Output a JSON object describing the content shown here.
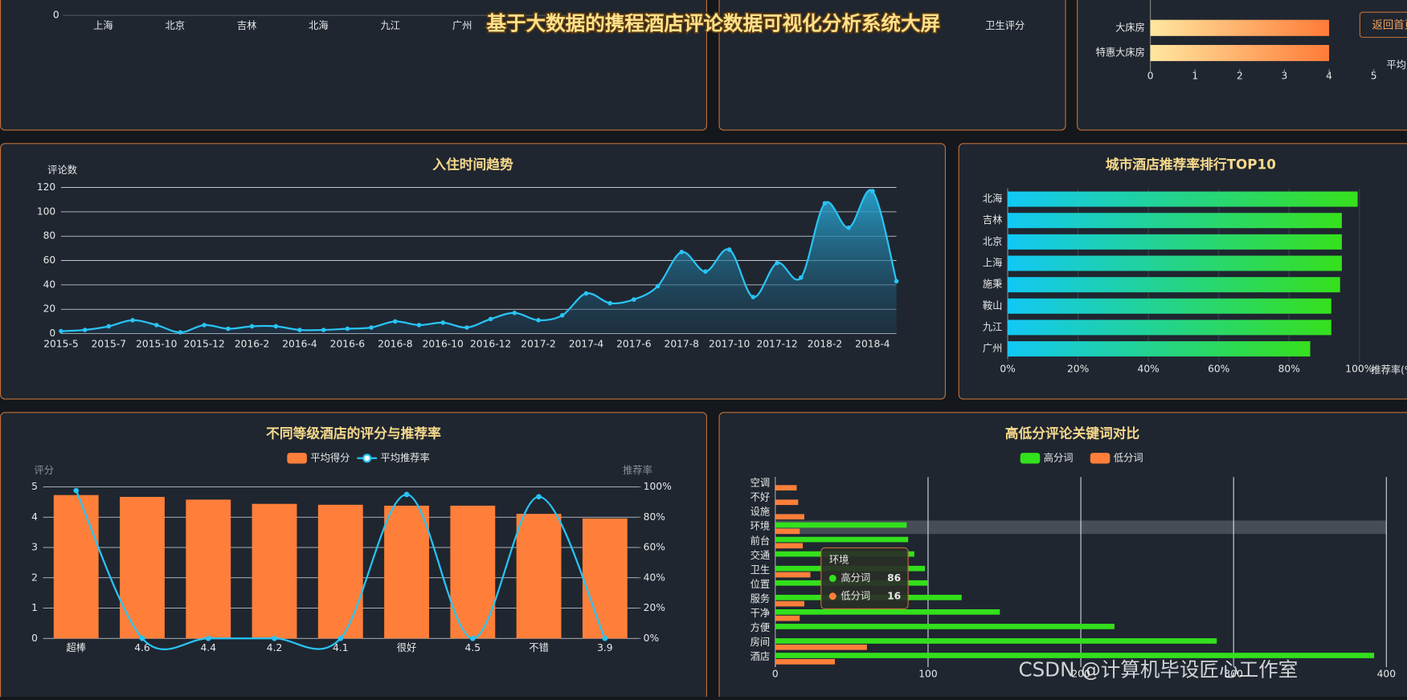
{
  "header": {
    "title": "基于大数据的携程酒店评论数据可视化分析系统大屏",
    "button": "返回首页"
  },
  "watermark": "CSDN @计算机毕设匠心工作室",
  "chart_data": [
    {
      "type": "bar",
      "categories": [
        "上海",
        "北京",
        "吉林",
        "北海",
        "九江",
        "广州"
      ],
      "yticks": [
        0
      ]
    },
    {
      "type": "bar",
      "categories": [
        "卫生评分"
      ]
    },
    {
      "type": "hbar",
      "categories": [
        "大床房",
        "特惠大床房"
      ],
      "values": [
        4,
        4
      ],
      "xlim": [
        0,
        5
      ],
      "xticks": [
        0,
        1,
        2,
        3,
        4,
        5
      ],
      "x_label": "平均分"
    },
    {
      "type": "line",
      "title": "入住时间趋势",
      "y_label": "评论数",
      "categories": [
        "2015-5",
        null,
        "2015-7",
        null,
        "2015-10",
        null,
        "2015-12",
        null,
        "2016-2",
        null,
        "2016-4",
        null,
        "2016-6",
        null,
        "2016-8",
        null,
        "2016-10",
        null,
        "2016-12",
        null,
        "2017-2",
        null,
        "2017-4",
        null,
        "2017-6",
        null,
        "2017-8",
        null,
        "2017-10",
        null,
        "2017-12",
        null,
        "2018-2",
        null,
        "2018-4",
        null
      ],
      "values": [
        2,
        3,
        6,
        11,
        7,
        1,
        7,
        4,
        6,
        6,
        3,
        3,
        4,
        5,
        10,
        7,
        9,
        5,
        12,
        17,
        11,
        15,
        33,
        25,
        28,
        39,
        67,
        51,
        69,
        30,
        58,
        46,
        107,
        87,
        117,
        43
      ],
      "color": "#29c4f5",
      "ylim": [
        0,
        120
      ],
      "yticks": [
        0,
        20,
        40,
        60,
        80,
        100,
        120
      ],
      "grid": true
    },
    {
      "type": "hbar",
      "title": "城市酒店推荐率排行TOP10",
      "x_label": "推荐率(%)",
      "categories": [
        "北海",
        "吉林",
        "北京",
        "上海",
        "施秉",
        "鞍山",
        "九江",
        "广州"
      ],
      "values": [
        99.5,
        95,
        95,
        95,
        94.5,
        92,
        92,
        86
      ],
      "xlim": [
        0,
        100
      ],
      "xticks": [
        {
          "value": 0,
          "label": "0%"
        },
        {
          "value": 20,
          "label": "20%"
        },
        {
          "value": 40,
          "label": "40%"
        },
        {
          "value": 60,
          "label": "60%"
        },
        {
          "value": 80,
          "label": "80%"
        },
        {
          "value": 100,
          "label": "100%"
        }
      ],
      "grid": true
    },
    {
      "type": "combo",
      "title": "不同等级酒店的评分与推荐率",
      "y_label": "评分",
      "y2_label": "推荐率",
      "categories": [
        "超棒",
        "4.6",
        "4.4",
        "4.2",
        "4.1",
        "很好",
        "4.5",
        "不错",
        "3.9"
      ],
      "series": [
        {
          "name": "平均得分",
          "type": "bar",
          "color": "#ff7f3a",
          "values": [
            4.73,
            4.67,
            4.58,
            4.44,
            4.41,
            4.38,
            4.38,
            4.11,
            3.96
          ]
        },
        {
          "name": "平均推荐率",
          "type": "line",
          "color": "#29c4f5",
          "axis": "y2",
          "values": [
            97.6,
            0,
            0,
            0,
            0,
            95,
            0,
            93.5,
            0
          ]
        }
      ],
      "ylim": [
        0,
        5
      ],
      "yticks": [
        0,
        1,
        2,
        3,
        4,
        5
      ],
      "y2lim": [
        0,
        100
      ],
      "y2ticks": [
        {
          "value": 0,
          "label": "0%"
        },
        {
          "value": 20,
          "label": "20%"
        },
        {
          "value": 40,
          "label": "40%"
        },
        {
          "value": 60,
          "label": "60%"
        },
        {
          "value": 80,
          "label": "80%"
        },
        {
          "value": 100,
          "label": "100%"
        }
      ],
      "grid": true
    },
    {
      "type": "hbar",
      "title": "高低分评论关键词对比",
      "categories": [
        "空调",
        "不好",
        "设施",
        "环境",
        "前台",
        "交通",
        "卫生",
        "位置",
        "服务",
        "干净",
        "方便",
        "房间",
        "酒店"
      ],
      "series": [
        {
          "name": "高分词",
          "color": "#33e01c",
          "values": [
            0,
            0,
            0,
            86,
            87,
            91,
            98,
            100,
            122,
            147,
            222,
            289,
            392
          ]
        },
        {
          "name": "低分词",
          "color": "#ff7f3a",
          "values": [
            14,
            15,
            19,
            16,
            18,
            0,
            23,
            0,
            19,
            16,
            0,
            60,
            39
          ]
        }
      ],
      "xlim": [
        0,
        400
      ],
      "xticks": [
        0,
        100,
        200,
        300,
        400
      ],
      "grid": true,
      "highlight": "环境"
    }
  ]
}
